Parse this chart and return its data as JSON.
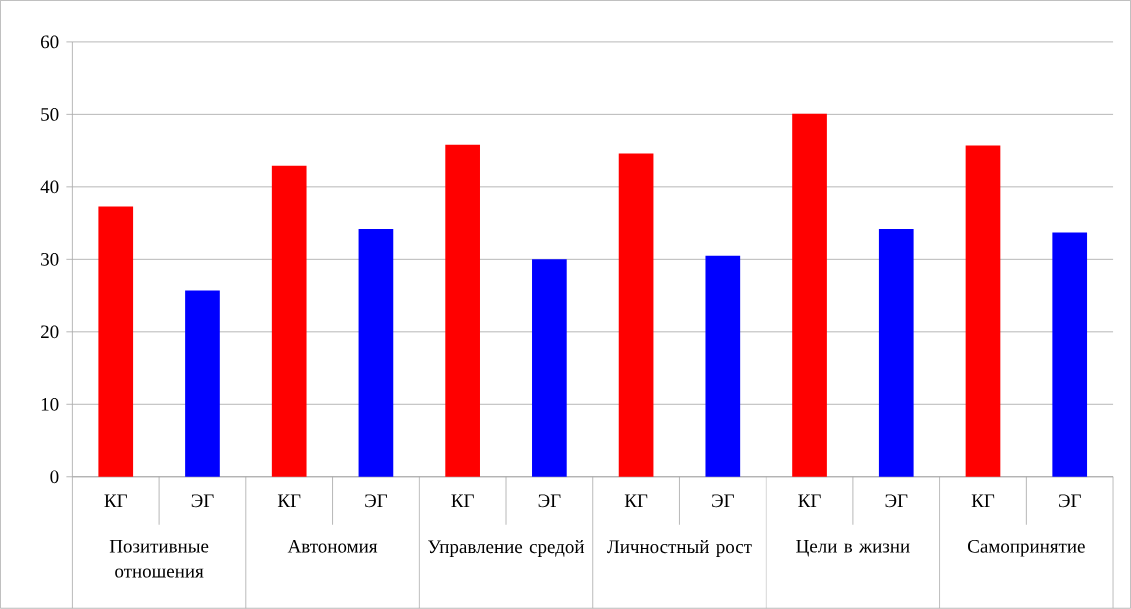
{
  "chart_data": {
    "type": "bar",
    "categories": [
      "Позитивные отношения",
      "Автономия",
      "Управление средой",
      "Личностный рост",
      "Цели в жизни",
      "Самопринятие"
    ],
    "series": [
      {
        "name": "КГ",
        "color": "#ff0000",
        "values": [
          37.3,
          42.9,
          45.8,
          44.6,
          50.1,
          45.7
        ]
      },
      {
        "name": "ЭГ",
        "color": "#0000ff",
        "values": [
          25.7,
          34.2,
          30.0,
          30.5,
          34.2,
          33.7
        ]
      }
    ],
    "ylim": [
      0,
      60
    ],
    "yticks": [
      0,
      10,
      20,
      30,
      40,
      50,
      60
    ],
    "grid": "y"
  }
}
